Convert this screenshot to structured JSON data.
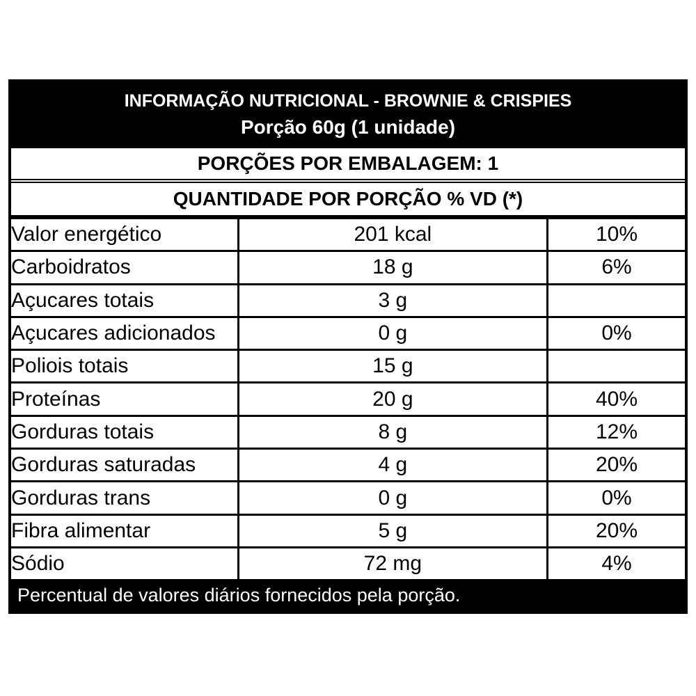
{
  "label": {
    "title": "INFORMAÇÃO NUTRICIONAL - BROWNIE & CRISPIES",
    "subtitle": "Porção 60g (1 unidade)",
    "servings_line": "PORÇÕES POR EMBALAGEM: 1",
    "columns_header": "QUANTIDADE POR PORÇÃO % VD (*)",
    "rows": [
      {
        "label": "Valor energético",
        "amount": "201 kcal",
        "dv": "10%"
      },
      {
        "label": "Carboidratos",
        "amount": "18 g",
        "dv": "6%"
      },
      {
        "label": "Açucares totais",
        "amount": "3 g",
        "dv": ""
      },
      {
        "label": "Açucares adicionados",
        "amount": "0 g",
        "dv": "0%"
      },
      {
        "label": "Poliois totais",
        "amount": "15 g",
        "dv": ""
      },
      {
        "label": "Proteínas",
        "amount": "20 g",
        "dv": "40%"
      },
      {
        "label": "Gorduras totais",
        "amount": "8 g",
        "dv": "12%"
      },
      {
        "label": "Gorduras saturadas",
        "amount": "4 g",
        "dv": "20%"
      },
      {
        "label": "Gorduras trans",
        "amount": "0 g",
        "dv": "0%"
      },
      {
        "label": "Fibra alimentar",
        "amount": "5 g",
        "dv": "20%"
      },
      {
        "label": "Sódio",
        "amount": "72 mg",
        "dv": "4%"
      }
    ],
    "footnote": "Percentual de valores diários fornecidos pela porção.",
    "colors": {
      "banner_bg": "#000000",
      "banner_text": "#ffffff",
      "body_text": "#000000",
      "border": "#000000",
      "row_bg": "#ffffff"
    }
  }
}
